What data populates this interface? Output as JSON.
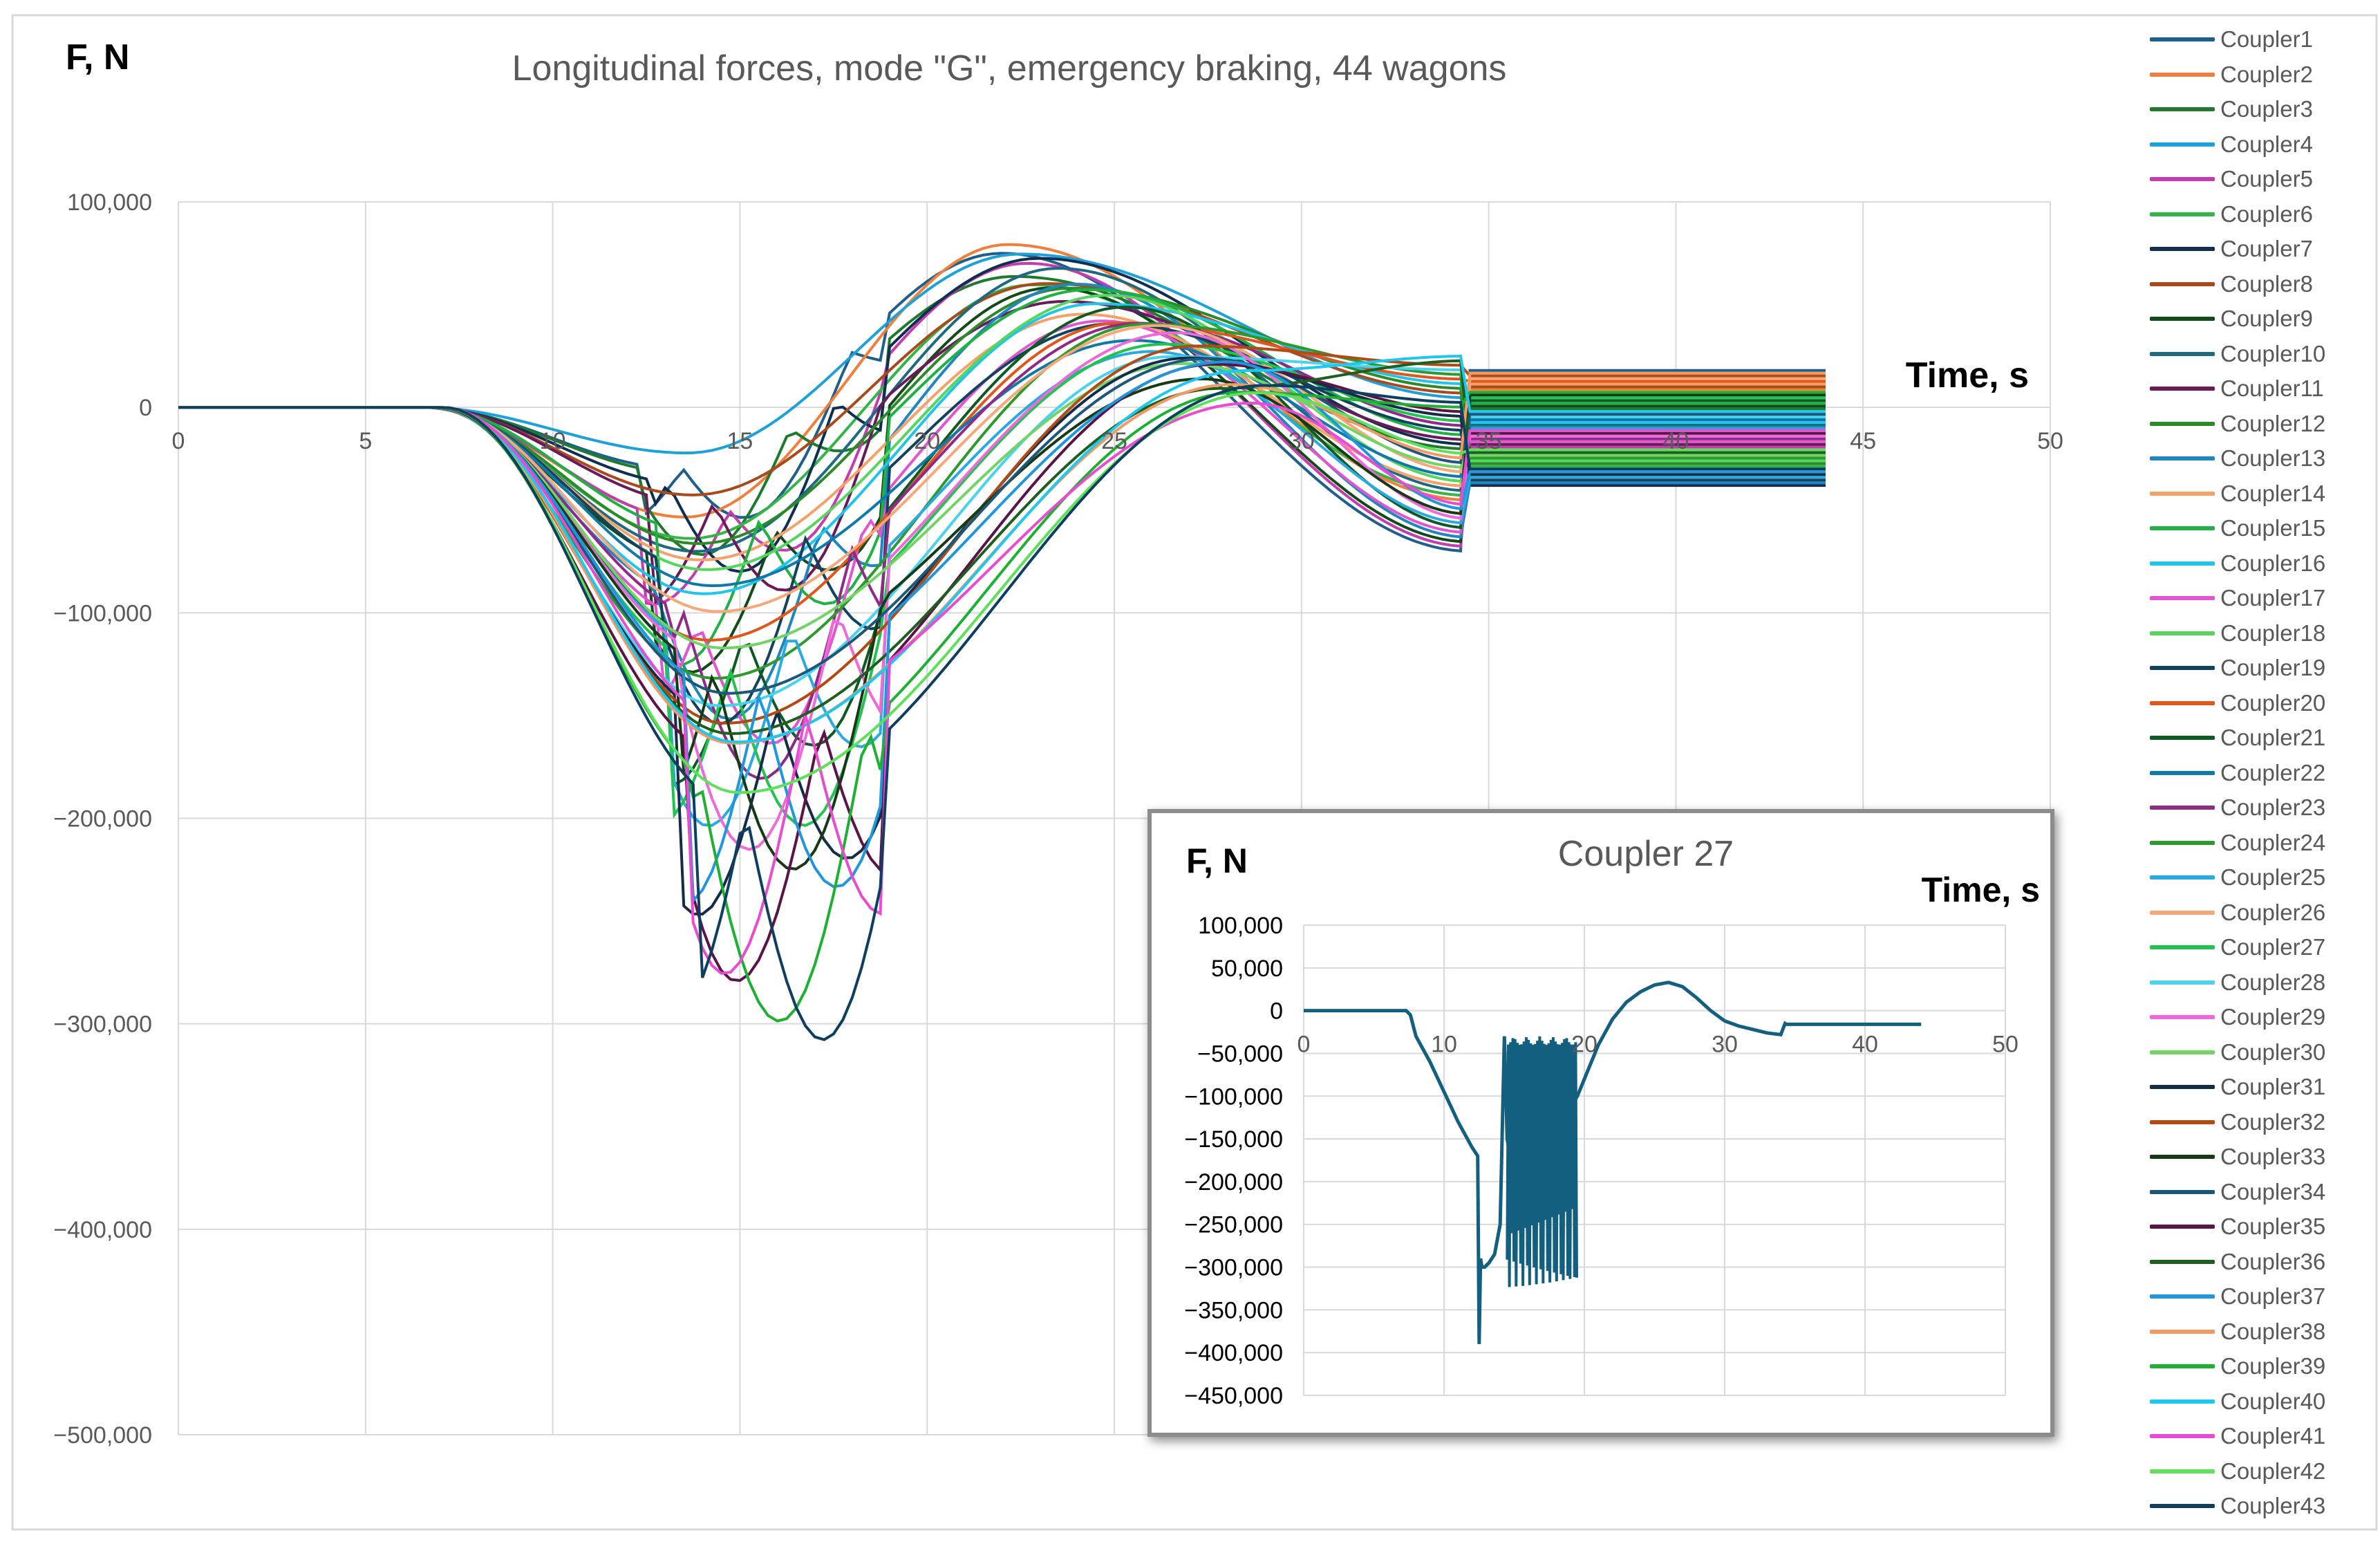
{
  "chart_data": [
    {
      "type": "line",
      "title": "Longitudinal forces, mode \"G\", emergency braking, 44 wagons",
      "ylabel": "F, N",
      "xlabel": "Time, s",
      "xlim": [
        0,
        50
      ],
      "ylim": [
        -500000,
        100000
      ],
      "x_ticks": [
        "0",
        "5",
        "10",
        "15",
        "20",
        "25",
        "30",
        "35",
        "40",
        "45",
        "50"
      ],
      "y_ticks": [
        "100,000",
        "0",
        "−100,000",
        "−200,000",
        "−300,000",
        "−400,000",
        "−500,000"
      ],
      "grid": true,
      "legend": "right",
      "series": [
        {
          "name": "Coupler1",
          "color": "#1f5f8b"
        },
        {
          "name": "Coupler2",
          "color": "#f07f3c"
        },
        {
          "name": "Coupler3",
          "color": "#1e7b2e"
        },
        {
          "name": "Coupler4",
          "color": "#1ea0d8"
        },
        {
          "name": "Coupler5",
          "color": "#c43cb0"
        },
        {
          "name": "Coupler6",
          "color": "#34b54a"
        },
        {
          "name": "Coupler7",
          "color": "#0e2f4f"
        },
        {
          "name": "Coupler8",
          "color": "#a84a1c"
        },
        {
          "name": "Coupler9",
          "color": "#134a1a"
        },
        {
          "name": "Coupler10",
          "color": "#1d6a82"
        },
        {
          "name": "Coupler11",
          "color": "#6a1a5a"
        },
        {
          "name": "Coupler12",
          "color": "#2c8a2a"
        },
        {
          "name": "Coupler13",
          "color": "#1f86c0"
        },
        {
          "name": "Coupler14",
          "color": "#f4a16a"
        },
        {
          "name": "Coupler15",
          "color": "#1fb144"
        },
        {
          "name": "Coupler16",
          "color": "#22c4ea"
        },
        {
          "name": "Coupler17",
          "color": "#e255cf"
        },
        {
          "name": "Coupler18",
          "color": "#56d65e"
        },
        {
          "name": "Coupler19",
          "color": "#12435e"
        },
        {
          "name": "Coupler20",
          "color": "#e1561c"
        },
        {
          "name": "Coupler21",
          "color": "#0f5a24"
        },
        {
          "name": "Coupler22",
          "color": "#0f7aaa"
        },
        {
          "name": "Coupler23",
          "color": "#8e2a88"
        },
        {
          "name": "Coupler24",
          "color": "#2e9a2e"
        },
        {
          "name": "Coupler25",
          "color": "#2aaae0"
        },
        {
          "name": "Coupler26",
          "color": "#f6a87a"
        },
        {
          "name": "Coupler27",
          "color": "#22c44f"
        },
        {
          "name": "Coupler28",
          "color": "#4ad2ee"
        },
        {
          "name": "Coupler29",
          "color": "#ee6ad8"
        },
        {
          "name": "Coupler30",
          "color": "#72d466"
        },
        {
          "name": "Coupler31",
          "color": "#142c48"
        },
        {
          "name": "Coupler32",
          "color": "#b24a16"
        },
        {
          "name": "Coupler33",
          "color": "#163a16"
        },
        {
          "name": "Coupler34",
          "color": "#1d5878"
        },
        {
          "name": "Coupler35",
          "color": "#5a1448"
        },
        {
          "name": "Coupler36",
          "color": "#1e5e1e"
        },
        {
          "name": "Coupler37",
          "color": "#2096dc"
        },
        {
          "name": "Coupler38",
          "color": "#f29a62"
        },
        {
          "name": "Coupler39",
          "color": "#1eb032"
        },
        {
          "name": "Coupler40",
          "color": "#1ec8f0"
        },
        {
          "name": "Coupler41",
          "color": "#e84cd0"
        },
        {
          "name": "Coupler42",
          "color": "#5ee05a"
        },
        {
          "name": "Coupler43",
          "color": "#0f3f60"
        }
      ]
    },
    {
      "type": "line",
      "title": "Coupler 27",
      "ylabel": "F, N",
      "xlabel": "Time, s",
      "xlim": [
        0,
        50
      ],
      "ylim": [
        -450000,
        100000
      ],
      "x_ticks": [
        "0",
        "10",
        "20",
        "30",
        "40",
        "50"
      ],
      "y_ticks": [
        "100,000",
        "50,000",
        "0",
        "−50,000",
        "−100,000",
        "−150,000",
        "−200,000",
        "−250,000",
        "−300,000",
        "−350,000",
        "−400,000",
        "−450,000"
      ],
      "grid": true,
      "series": [
        {
          "color": "#135f80",
          "x": [
            0,
            5,
            7.3,
            7.6,
            8,
            9,
            10,
            11,
            12,
            12.4,
            12.5,
            12.6,
            12.7,
            12.9,
            13.2,
            13.6,
            14,
            14.3,
            14.5,
            14.8,
            15,
            15.5,
            16,
            16.5,
            17,
            17.5,
            18,
            18.5,
            19,
            19.2,
            19.5,
            20,
            21,
            22,
            23,
            24,
            25,
            26,
            27,
            28,
            29,
            30,
            31,
            32,
            33,
            34,
            34.3,
            34.4,
            35,
            40,
            44
          ],
          "y": [
            0,
            0,
            0,
            -5000,
            -30000,
            -60000,
            -95000,
            -130000,
            -160000,
            -170000,
            -390000,
            -290000,
            -300000,
            -300000,
            -295000,
            -285000,
            -250000,
            -30000,
            -150000,
            -180000,
            -160000,
            -140000,
            -130000,
            -125000,
            -120000,
            -118000,
            -115000,
            -112000,
            -110000,
            -108000,
            -100000,
            -80000,
            -40000,
            -10000,
            10000,
            22000,
            30000,
            33000,
            28000,
            15000,
            0,
            -12000,
            -18000,
            -22000,
            -26000,
            -28000,
            -15000,
            -16000,
            -16000,
            -16000,
            -16000
          ]
        }
      ]
    }
  ]
}
